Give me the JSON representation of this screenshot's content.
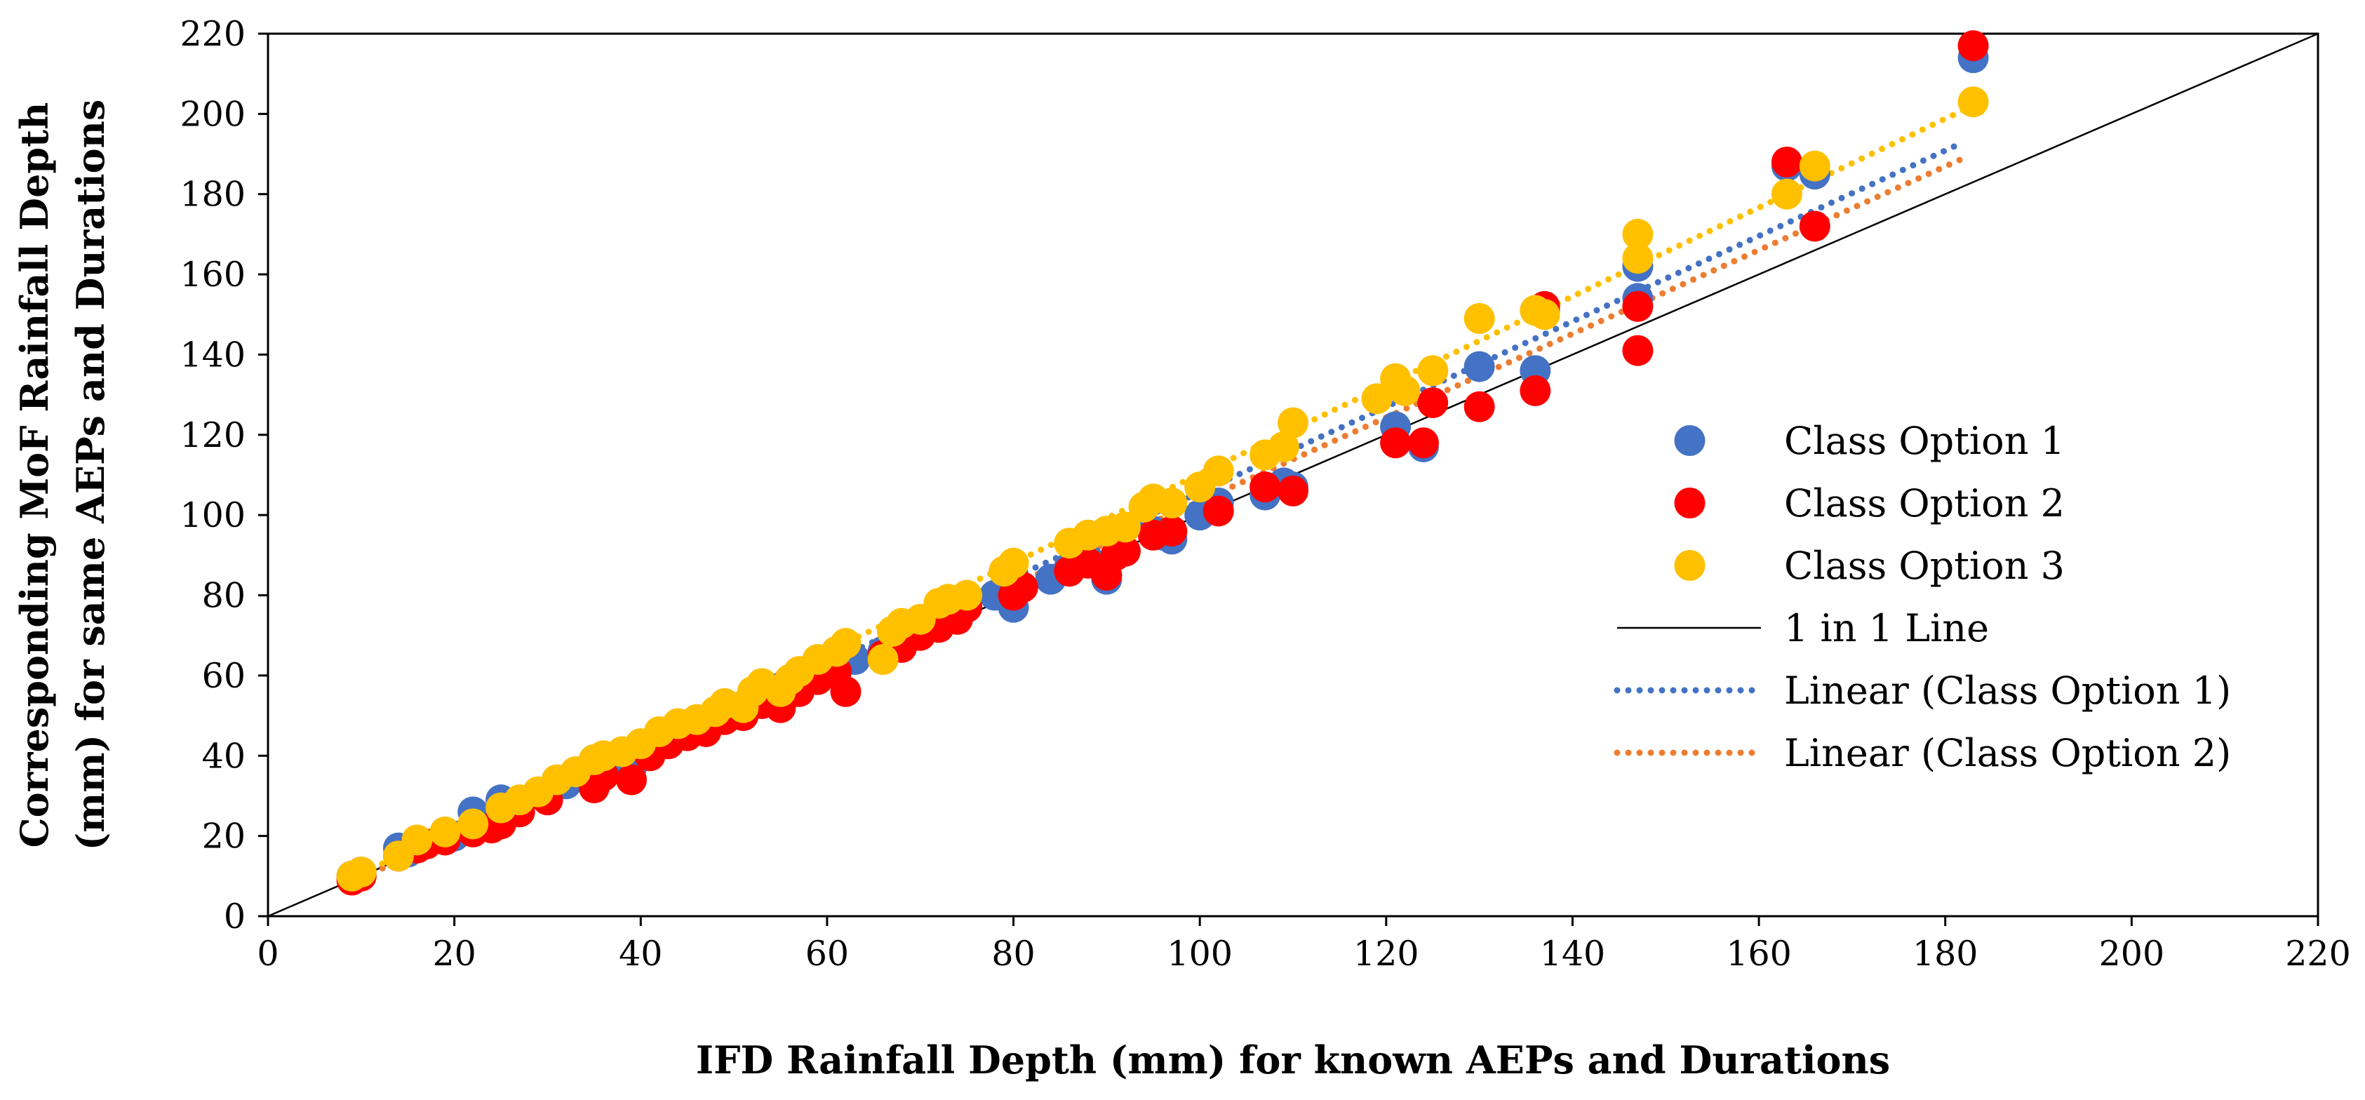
{
  "chart_data": {
    "type": "scatter",
    "xlabel": "IFD Rainfall Depth (mm) for known AEPs and Durations",
    "ylabel_lines": [
      "Corresponding MoF Rainfall Depth",
      "(mm) for same AEPs and Durations"
    ],
    "xlim": [
      0,
      220
    ],
    "ylim": [
      0,
      220
    ],
    "x_ticks": [
      "0",
      "20",
      "40",
      "60",
      "80",
      "100",
      "120",
      "140",
      "160",
      "180",
      "200",
      "220"
    ],
    "y_ticks": [
      "0",
      "20",
      "40",
      "60",
      "80",
      "100",
      "120",
      "140",
      "160",
      "180",
      "200",
      "220"
    ],
    "grid": false,
    "legend_position": "right",
    "series": [
      {
        "name": "Class Option 1",
        "color": "#4472C4",
        "points": [
          [
            9,
            10
          ],
          [
            10,
            11
          ],
          [
            14,
            17
          ],
          [
            15,
            16
          ],
          [
            16,
            18
          ],
          [
            19,
            19
          ],
          [
            20,
            20
          ],
          [
            22,
            26
          ],
          [
            24,
            24
          ],
          [
            25,
            29
          ],
          [
            27,
            27
          ],
          [
            30,
            29
          ],
          [
            32,
            33
          ],
          [
            34,
            36
          ],
          [
            35,
            39
          ],
          [
            36,
            38
          ],
          [
            38,
            37
          ],
          [
            39,
            37
          ],
          [
            41,
            43
          ],
          [
            43,
            44
          ],
          [
            45,
            46
          ],
          [
            47,
            48
          ],
          [
            49,
            50
          ],
          [
            51,
            51
          ],
          [
            53,
            53
          ],
          [
            55,
            57
          ],
          [
            57,
            58
          ],
          [
            59,
            61
          ],
          [
            61,
            63
          ],
          [
            63,
            64
          ],
          [
            66,
            66
          ],
          [
            68,
            68
          ],
          [
            70,
            71
          ],
          [
            72,
            73
          ],
          [
            74,
            75
          ],
          [
            78,
            80
          ],
          [
            80,
            77
          ],
          [
            84,
            84
          ],
          [
            86,
            87
          ],
          [
            88,
            89
          ],
          [
            90,
            84
          ],
          [
            92,
            91
          ],
          [
            95,
            96
          ],
          [
            96,
            95
          ],
          [
            97,
            94
          ],
          [
            100,
            100
          ],
          [
            102,
            103
          ],
          [
            107,
            105
          ],
          [
            109,
            108
          ],
          [
            110,
            107
          ],
          [
            121,
            122
          ],
          [
            124,
            117
          ],
          [
            130,
            137
          ],
          [
            136,
            136
          ],
          [
            137,
            151
          ],
          [
            147,
            162
          ],
          [
            147,
            154
          ],
          [
            163,
            187
          ],
          [
            166,
            185
          ],
          [
            183,
            214
          ]
        ]
      },
      {
        "name": "Class Option 2",
        "color": "#FF0000",
        "points": [
          [
            9,
            9
          ],
          [
            10,
            10
          ],
          [
            14,
            15
          ],
          [
            16,
            17
          ],
          [
            17,
            18
          ],
          [
            19,
            19
          ],
          [
            22,
            21
          ],
          [
            24,
            22
          ],
          [
            25,
            23
          ],
          [
            27,
            26
          ],
          [
            30,
            29
          ],
          [
            35,
            32
          ],
          [
            36,
            35
          ],
          [
            39,
            34
          ],
          [
            41,
            40
          ],
          [
            43,
            43
          ],
          [
            45,
            45
          ],
          [
            47,
            46
          ],
          [
            49,
            49
          ],
          [
            51,
            50
          ],
          [
            53,
            53
          ],
          [
            55,
            52
          ],
          [
            57,
            56
          ],
          [
            59,
            59
          ],
          [
            61,
            61
          ],
          [
            62,
            56
          ],
          [
            66,
            65
          ],
          [
            68,
            67
          ],
          [
            70,
            70
          ],
          [
            72,
            72
          ],
          [
            74,
            74
          ],
          [
            75,
            77
          ],
          [
            80,
            80
          ],
          [
            81,
            82
          ],
          [
            86,
            86
          ],
          [
            88,
            88
          ],
          [
            90,
            85
          ],
          [
            91,
            90
          ],
          [
            92,
            91
          ],
          [
            95,
            95
          ],
          [
            97,
            96
          ],
          [
            102,
            101
          ],
          [
            107,
            107
          ],
          [
            110,
            106
          ],
          [
            121,
            118
          ],
          [
            124,
            118
          ],
          [
            125,
            128
          ],
          [
            130,
            127
          ],
          [
            136,
            131
          ],
          [
            137,
            152
          ],
          [
            147,
            141
          ],
          [
            147,
            152
          ],
          [
            163,
            188
          ],
          [
            166,
            172
          ],
          [
            183,
            217
          ]
        ]
      },
      {
        "name": "Class Option 3",
        "color": "#FFC000",
        "points": [
          [
            9,
            10
          ],
          [
            10,
            11
          ],
          [
            14,
            15
          ],
          [
            16,
            19
          ],
          [
            19,
            21
          ],
          [
            22,
            23
          ],
          [
            25,
            27
          ],
          [
            27,
            29
          ],
          [
            29,
            31
          ],
          [
            31,
            34
          ],
          [
            33,
            36
          ],
          [
            35,
            39
          ],
          [
            36,
            40
          ],
          [
            38,
            41
          ],
          [
            40,
            43
          ],
          [
            42,
            46
          ],
          [
            44,
            48
          ],
          [
            46,
            49
          ],
          [
            48,
            51
          ],
          [
            49,
            53
          ],
          [
            51,
            52
          ],
          [
            52,
            56
          ],
          [
            53,
            58
          ],
          [
            55,
            56
          ],
          [
            56,
            59
          ],
          [
            57,
            61
          ],
          [
            59,
            64
          ],
          [
            61,
            66
          ],
          [
            62,
            68
          ],
          [
            66,
            64
          ],
          [
            67,
            71
          ],
          [
            68,
            73
          ],
          [
            70,
            74
          ],
          [
            72,
            78
          ],
          [
            73,
            79
          ],
          [
            75,
            80
          ],
          [
            79,
            86
          ],
          [
            80,
            88
          ],
          [
            86,
            93
          ],
          [
            88,
            95
          ],
          [
            90,
            96
          ],
          [
            92,
            97
          ],
          [
            94,
            102
          ],
          [
            95,
            104
          ],
          [
            97,
            103
          ],
          [
            100,
            107
          ],
          [
            102,
            111
          ],
          [
            107,
            115
          ],
          [
            109,
            117
          ],
          [
            110,
            123
          ],
          [
            119,
            129
          ],
          [
            121,
            134
          ],
          [
            122,
            131
          ],
          [
            125,
            136
          ],
          [
            130,
            149
          ],
          [
            136,
            151
          ],
          [
            137,
            150
          ],
          [
            147,
            164
          ],
          [
            147,
            170
          ],
          [
            163,
            180
          ],
          [
            166,
            187
          ],
          [
            183,
            203
          ]
        ]
      }
    ],
    "lines": [
      {
        "name": "1 in 1 Line",
        "style": "solid",
        "color": "#000000",
        "x": [
          0,
          220
        ],
        "y": [
          0,
          220
        ]
      },
      {
        "name": "Linear (Class Option 1)",
        "style": "dotted",
        "color": "#4472C4",
        "x": [
          9,
          182
        ],
        "y": [
          8.8,
          193
        ]
      },
      {
        "name": "Linear (Class Option 2)",
        "style": "dotted",
        "color": "#ED7D31",
        "x": [
          9,
          182
        ],
        "y": [
          8.5,
          189
        ]
      },
      {
        "name": "Linear (Class Option 3)",
        "style": "dotted",
        "color": "#FFC000",
        "x": [
          9,
          182
        ],
        "y": [
          9.5,
          201
        ]
      }
    ],
    "legend": [
      {
        "label": "Class Option 1",
        "kind": "marker",
        "color": "#4472C4"
      },
      {
        "label": "Class Option 2",
        "kind": "marker",
        "color": "#FF0000"
      },
      {
        "label": "Class Option 3",
        "kind": "marker",
        "color": "#FFC000"
      },
      {
        "label": "1 in 1 Line",
        "kind": "solid",
        "color": "#000000"
      },
      {
        "label": "Linear (Class Option 1)",
        "kind": "dotted",
        "color": "#4472C4"
      },
      {
        "label": "Linear (Class Option 2)",
        "kind": "dotted",
        "color": "#ED7D31"
      }
    ]
  }
}
